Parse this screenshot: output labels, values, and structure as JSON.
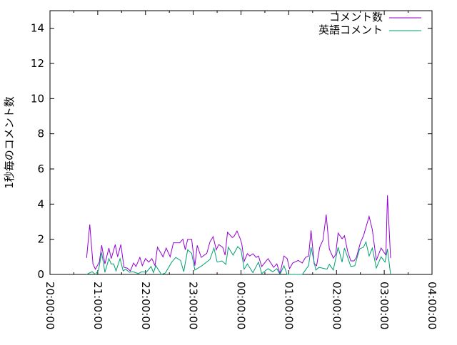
{
  "chart_data": {
    "type": "line",
    "title": "",
    "xlabel": "",
    "ylabel": "1秒毎のコメント数",
    "xlim": [
      "20:00:00",
      "04:00:00"
    ],
    "ylim": [
      0,
      15
    ],
    "x_ticks": [
      "20:00:00",
      "21:00:00",
      "22:00:00",
      "23:00:00",
      "00:00:00",
      "01:00:00",
      "02:00:00",
      "03:00:00",
      "04:00:00"
    ],
    "y_ticks": [
      "0",
      "2",
      "4",
      "6",
      "8",
      "10",
      "12",
      "14"
    ],
    "grid": false,
    "legend_position": "top-right",
    "series": [
      {
        "name": "コメント数",
        "color": "#9400d3",
        "points": [
          [
            "20:46",
            0.94
          ],
          [
            "20:50",
            2.84
          ],
          [
            "20:54",
            0.6
          ],
          [
            "20:57",
            0.3
          ],
          [
            "21:02",
            0.7
          ],
          [
            "21:05",
            1.66
          ],
          [
            "21:09",
            0.6
          ],
          [
            "21:14",
            1.5
          ],
          [
            "21:17",
            0.9
          ],
          [
            "21:22",
            1.7
          ],
          [
            "21:25",
            1.0
          ],
          [
            "21:29",
            1.7
          ],
          [
            "21:33",
            0.4
          ],
          [
            "21:37",
            0.36
          ],
          [
            "21:41",
            0.2
          ],
          [
            "21:45",
            0.65
          ],
          [
            "21:48",
            0.45
          ],
          [
            "21:53",
            0.97
          ],
          [
            "21:56",
            0.5
          ],
          [
            "22:00",
            0.9
          ],
          [
            "22:04",
            0.7
          ],
          [
            "22:08",
            0.9
          ],
          [
            "22:12",
            0.5
          ],
          [
            "22:15",
            1.55
          ],
          [
            "22:22",
            1.0
          ],
          [
            "22:26",
            1.5
          ],
          [
            "22:31",
            1.0
          ],
          [
            "22:35",
            1.8
          ],
          [
            "22:43",
            1.8
          ],
          [
            "22:47",
            2.0
          ],
          [
            "22:50",
            1.4
          ],
          [
            "22:53",
            2.0
          ],
          [
            "22:58",
            2.0
          ],
          [
            "23:02",
            0.5
          ],
          [
            "23:05",
            1.65
          ],
          [
            "23:10",
            0.97
          ],
          [
            "23:17",
            1.2
          ],
          [
            "23:21",
            1.85
          ],
          [
            "23:25",
            2.15
          ],
          [
            "23:29",
            1.4
          ],
          [
            "23:32",
            1.7
          ],
          [
            "23:37",
            1.55
          ],
          [
            "23:40",
            1.1
          ],
          [
            "23:43",
            2.4
          ],
          [
            "23:49",
            2.1
          ],
          [
            "23:51",
            2.15
          ],
          [
            "23:55",
            2.47
          ],
          [
            "23:59",
            2.03
          ],
          [
            "00:01",
            1.74
          ],
          [
            "00:04",
            0.75
          ],
          [
            "00:08",
            1.18
          ],
          [
            "00:11",
            1.05
          ],
          [
            "00:15",
            1.18
          ],
          [
            "00:19",
            0.97
          ],
          [
            "00:22",
            1.05
          ],
          [
            "00:26",
            0.45
          ],
          [
            "00:34",
            0.9
          ],
          [
            "00:41",
            0.4
          ],
          [
            "00:45",
            0.6
          ],
          [
            "00:49",
            0.05
          ],
          [
            "00:54",
            1.05
          ],
          [
            "00:58",
            0.9
          ],
          [
            "01:01",
            0.33
          ],
          [
            "01:05",
            0.65
          ],
          [
            "01:12",
            0.8
          ],
          [
            "01:17",
            0.65
          ],
          [
            "01:21",
            0.97
          ],
          [
            "01:25",
            1.05
          ],
          [
            "01:28",
            2.5
          ],
          [
            "01:32",
            0.6
          ],
          [
            "01:35",
            0.5
          ],
          [
            "01:39",
            1.55
          ],
          [
            "01:43",
            1.95
          ],
          [
            "01:47",
            3.4
          ],
          [
            "01:51",
            1.45
          ],
          [
            "01:56",
            0.93
          ],
          [
            "01:59",
            1.13
          ],
          [
            "02:02",
            2.35
          ],
          [
            "02:07",
            2.03
          ],
          [
            "02:10",
            2.2
          ],
          [
            "02:14",
            1.3
          ],
          [
            "02:18",
            0.77
          ],
          [
            "02:22",
            0.77
          ],
          [
            "02:25",
            0.97
          ],
          [
            "02:30",
            1.8
          ],
          [
            "02:34",
            2.2
          ],
          [
            "02:41",
            3.3
          ],
          [
            "02:45",
            2.55
          ],
          [
            "02:50",
            0.8
          ],
          [
            "02:56",
            1.5
          ],
          [
            "03:02",
            1.1
          ],
          [
            "03:04",
            4.5
          ],
          [
            "03:08",
            0.93
          ]
        ]
      },
      {
        "name": "英語コメント",
        "color": "#009e73",
        "points": [
          [
            "20:46",
            0.0
          ],
          [
            "20:53",
            0.16
          ],
          [
            "20:57",
            0.0
          ],
          [
            "21:01",
            0.25
          ],
          [
            "21:05",
            1.25
          ],
          [
            "21:09",
            0.12
          ],
          [
            "21:14",
            0.9
          ],
          [
            "21:17",
            0.6
          ],
          [
            "21:20",
            0.6
          ],
          [
            "21:23",
            0.2
          ],
          [
            "21:28",
            0.9
          ],
          [
            "21:32",
            0.2
          ],
          [
            "21:35",
            0.3
          ],
          [
            "21:40",
            0.12
          ],
          [
            "21:44",
            0.16
          ],
          [
            "21:51",
            0.05
          ],
          [
            "21:55",
            0.15
          ],
          [
            "22:01",
            0.12
          ],
          [
            "22:07",
            0.45
          ],
          [
            "22:10",
            0.1
          ],
          [
            "22:13",
            0.5
          ],
          [
            "22:20",
            0.0
          ],
          [
            "22:25",
            0.08
          ],
          [
            "22:33",
            0.7
          ],
          [
            "22:38",
            0.97
          ],
          [
            "22:44",
            0.8
          ],
          [
            "22:48",
            0.16
          ],
          [
            "22:53",
            1.4
          ],
          [
            "22:58",
            1.2
          ],
          [
            "23:02",
            0.25
          ],
          [
            "23:11",
            0.5
          ],
          [
            "23:21",
            0.85
          ],
          [
            "23:26",
            1.5
          ],
          [
            "23:30",
            0.7
          ],
          [
            "23:36",
            0.77
          ],
          [
            "23:41",
            0.57
          ],
          [
            "23:44",
            1.55
          ],
          [
            "23:50",
            1.1
          ],
          [
            "23:56",
            1.58
          ],
          [
            "24:00",
            1.4
          ],
          [
            "00:04",
            0.3
          ],
          [
            "00:08",
            0.6
          ],
          [
            "00:15",
            0.1
          ],
          [
            "00:22",
            0.7
          ],
          [
            "00:26",
            0.05
          ],
          [
            "00:34",
            0.33
          ],
          [
            "00:40",
            0.15
          ],
          [
            "00:45",
            0.33
          ],
          [
            "00:49",
            0.0
          ],
          [
            "00:54",
            0.5
          ],
          [
            "00:58",
            0.0
          ],
          [
            "01:07",
            0.0
          ],
          [
            "01:17",
            0.0
          ],
          [
            "01:25",
            0.5
          ],
          [
            "01:28",
            1.55
          ],
          [
            "01:34",
            0.25
          ],
          [
            "01:38",
            0.4
          ],
          [
            "01:48",
            0.3
          ],
          [
            "01:51",
            0.57
          ],
          [
            "01:56",
            0.25
          ],
          [
            "02:02",
            1.55
          ],
          [
            "02:07",
            0.7
          ],
          [
            "02:10",
            1.5
          ],
          [
            "02:18",
            0.45
          ],
          [
            "02:23",
            0.5
          ],
          [
            "02:29",
            1.45
          ],
          [
            "02:34",
            1.55
          ],
          [
            "02:37",
            1.85
          ],
          [
            "02:41",
            1.05
          ],
          [
            "02:45",
            1.5
          ],
          [
            "02:50",
            0.37
          ],
          [
            "02:56",
            1.0
          ],
          [
            "03:01",
            0.7
          ],
          [
            "03:04",
            1.45
          ],
          [
            "03:08",
            0.0
          ]
        ]
      }
    ]
  }
}
